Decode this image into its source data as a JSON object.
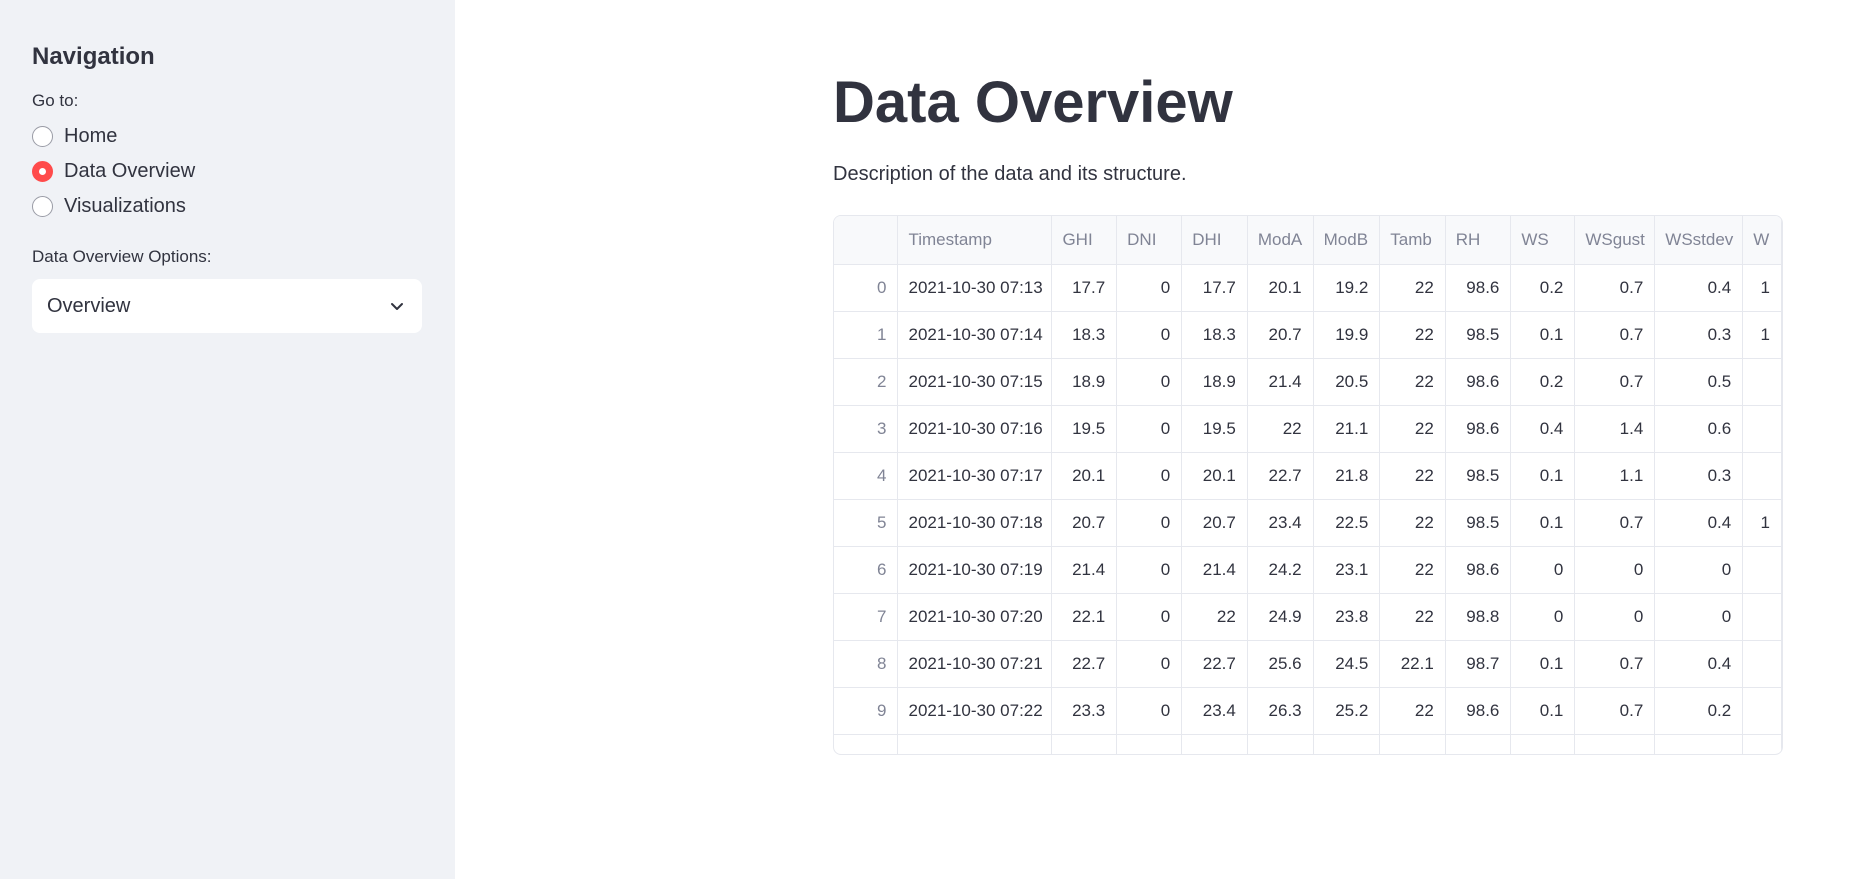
{
  "sidebar": {
    "title": "Navigation",
    "goto_label": "Go to:",
    "radio_options": [
      {
        "label": "Home",
        "checked": false
      },
      {
        "label": "Data Overview",
        "checked": true
      },
      {
        "label": "Visualizations",
        "checked": false
      }
    ],
    "options_label": "Data Overview Options:",
    "select_value": "Overview"
  },
  "main": {
    "title": "Data Overview",
    "description": "Description of the data and its structure."
  },
  "table": {
    "columns": [
      "Timestamp",
      "GHI",
      "DNI",
      "DHI",
      "ModA",
      "ModB",
      "Tamb",
      "RH",
      "WS",
      "WSgust",
      "WSstdev",
      "W"
    ],
    "rows": [
      {
        "index": "0",
        "cells": [
          "2021-10-30 07:13",
          "17.7",
          "0",
          "17.7",
          "20.1",
          "19.2",
          "22",
          "98.6",
          "0.2",
          "0.7",
          "0.4",
          "1"
        ]
      },
      {
        "index": "1",
        "cells": [
          "2021-10-30 07:14",
          "18.3",
          "0",
          "18.3",
          "20.7",
          "19.9",
          "22",
          "98.5",
          "0.1",
          "0.7",
          "0.3",
          "1"
        ]
      },
      {
        "index": "2",
        "cells": [
          "2021-10-30 07:15",
          "18.9",
          "0",
          "18.9",
          "21.4",
          "20.5",
          "22",
          "98.6",
          "0.2",
          "0.7",
          "0.5",
          ""
        ]
      },
      {
        "index": "3",
        "cells": [
          "2021-10-30 07:16",
          "19.5",
          "0",
          "19.5",
          "22",
          "21.1",
          "22",
          "98.6",
          "0.4",
          "1.4",
          "0.6",
          ""
        ]
      },
      {
        "index": "4",
        "cells": [
          "2021-10-30 07:17",
          "20.1",
          "0",
          "20.1",
          "22.7",
          "21.8",
          "22",
          "98.5",
          "0.1",
          "1.1",
          "0.3",
          ""
        ]
      },
      {
        "index": "5",
        "cells": [
          "2021-10-30 07:18",
          "20.7",
          "0",
          "20.7",
          "23.4",
          "22.5",
          "22",
          "98.5",
          "0.1",
          "0.7",
          "0.4",
          "1"
        ]
      },
      {
        "index": "6",
        "cells": [
          "2021-10-30 07:19",
          "21.4",
          "0",
          "21.4",
          "24.2",
          "23.1",
          "22",
          "98.6",
          "0",
          "0",
          "0",
          ""
        ]
      },
      {
        "index": "7",
        "cells": [
          "2021-10-30 07:20",
          "22.1",
          "0",
          "22",
          "24.9",
          "23.8",
          "22",
          "98.8",
          "0",
          "0",
          "0",
          ""
        ]
      },
      {
        "index": "8",
        "cells": [
          "2021-10-30 07:21",
          "22.7",
          "0",
          "22.7",
          "25.6",
          "24.5",
          "22.1",
          "98.7",
          "0.1",
          "0.7",
          "0.4",
          ""
        ]
      },
      {
        "index": "9",
        "cells": [
          "2021-10-30 07:22",
          "23.3",
          "0",
          "23.4",
          "26.3",
          "25.2",
          "22",
          "98.6",
          "0.1",
          "0.7",
          "0.2",
          ""
        ]
      }
    ]
  },
  "colors": {
    "accent": "#ff4b4b",
    "sidebar_bg": "#f0f2f6",
    "text": "#31333f",
    "muted_text": "#808495"
  },
  "icons": {
    "select_chevron": "chevron-down-icon"
  }
}
